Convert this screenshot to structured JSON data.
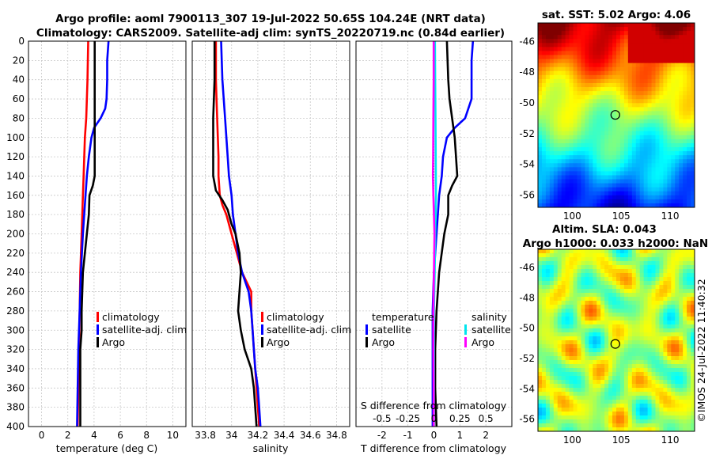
{
  "title_line1": "Argo profile: aoml 7900113_307 19-Jul-2022 50.65S 104.24E (NRT data)",
  "title_line2": "Climatology: CARS2009. Satellite-adj clim: synTS_20220719.nc (0.84d earlier)",
  "timestamp": "©IMOS 24-Jul-2022 11:40:32",
  "colors": {
    "climatology": "#ff0000",
    "satellite": "#0000ff",
    "argo": "#000000",
    "salinity_sat": "#00e5ee",
    "salinity_argo": "#ff00ff"
  },
  "depth_ticks": [
    "0",
    "20",
    "40",
    "60",
    "80",
    "100",
    "120",
    "140",
    "160",
    "180",
    "200",
    "220",
    "240",
    "260",
    "280",
    "300",
    "320",
    "340",
    "360",
    "380",
    "400"
  ],
  "chart_data": [
    {
      "type": "line",
      "panel": "temperature",
      "xlabel": "temperature (deg C)",
      "ylabel": "",
      "xlim": [
        -1,
        11
      ],
      "ylim": [
        400,
        0
      ],
      "xticks": [
        0,
        2,
        4,
        6,
        8,
        10
      ],
      "xtick_labels": [
        "0",
        "2",
        "4",
        "6",
        "8",
        "10"
      ],
      "legend": [
        "climatology",
        "satellite-adj. clim",
        "Argo"
      ],
      "series": [
        {
          "name": "climatology",
          "color": "#ff0000",
          "depth": [
            0,
            40,
            80,
            100,
            140,
            160,
            200,
            240,
            280,
            320,
            360,
            400
          ],
          "values": [
            3.55,
            3.5,
            3.4,
            3.3,
            3.2,
            3.15,
            3.05,
            2.95,
            2.9,
            2.85,
            2.8,
            2.75
          ]
        },
        {
          "name": "satellite-adj. clim",
          "color": "#0000ff",
          "depth": [
            0,
            20,
            40,
            60,
            70,
            80,
            90,
            100,
            120,
            140,
            160,
            200,
            240,
            280,
            320,
            360,
            400
          ],
          "values": [
            5.1,
            5.0,
            5.0,
            4.95,
            4.85,
            4.5,
            4.0,
            3.8,
            3.6,
            3.45,
            3.35,
            3.15,
            3.0,
            2.9,
            2.8,
            2.75,
            2.7
          ]
        },
        {
          "name": "Argo",
          "color": "#000000",
          "depth": [
            0,
            40,
            80,
            140,
            150,
            160,
            180,
            200,
            220,
            240,
            280,
            300,
            320,
            340,
            360,
            380,
            400
          ],
          "values": [
            4.05,
            4.05,
            4.05,
            4.05,
            3.9,
            3.65,
            3.6,
            3.45,
            3.3,
            3.15,
            3.05,
            3.05,
            2.95,
            2.95,
            2.95,
            2.95,
            2.95
          ]
        }
      ]
    },
    {
      "type": "line",
      "panel": "salinity",
      "xlabel": "salinity",
      "ylabel": "",
      "xlim": [
        33.7,
        34.9
      ],
      "ylim": [
        400,
        0
      ],
      "xticks": [
        33.8,
        34,
        34.2,
        34.4,
        34.6,
        34.8
      ],
      "xtick_labels": [
        "33.8",
        "34",
        "34.2",
        "34.4",
        "34.6",
        "34.8"
      ],
      "legend": [
        "climatology",
        "satellite-adj. clim",
        "Argo"
      ],
      "series": [
        {
          "name": "climatology",
          "color": "#ff0000",
          "depth": [
            0,
            40,
            80,
            120,
            140,
            160,
            170,
            180,
            200,
            220,
            240,
            260,
            280,
            300,
            340,
            360,
            400
          ],
          "values": [
            33.88,
            33.88,
            33.89,
            33.9,
            33.9,
            33.91,
            33.93,
            33.96,
            34.0,
            34.04,
            34.08,
            34.15,
            34.15,
            34.16,
            34.18,
            34.19,
            34.21
          ]
        },
        {
          "name": "satellite-adj. clim",
          "color": "#0000ff",
          "depth": [
            0,
            40,
            80,
            120,
            140,
            160,
            180,
            200,
            220,
            240,
            260,
            280,
            300,
            320,
            340,
            360,
            380,
            400
          ],
          "values": [
            33.92,
            33.93,
            33.95,
            33.97,
            33.98,
            34.0,
            34.01,
            34.03,
            34.05,
            34.08,
            34.13,
            34.15,
            34.16,
            34.17,
            34.18,
            34.2,
            34.21,
            34.22
          ]
        },
        {
          "name": "Argo",
          "color": "#000000",
          "depth": [
            0,
            40,
            80,
            120,
            140,
            155,
            165,
            175,
            190,
            200,
            220,
            240,
            260,
            280,
            300,
            320,
            340,
            360,
            380,
            400
          ],
          "values": [
            33.87,
            33.87,
            33.86,
            33.86,
            33.86,
            33.88,
            33.93,
            33.97,
            34.0,
            34.03,
            34.06,
            34.07,
            34.06,
            34.05,
            34.07,
            34.1,
            34.15,
            34.17,
            34.18,
            34.19
          ]
        }
      ]
    },
    {
      "type": "line",
      "panel": "differences",
      "xlabel": "T difference from climatology",
      "xlabel_top": "S difference from climatology",
      "xlim": [
        -3,
        3
      ],
      "ylim": [
        400,
        0
      ],
      "xticks": [
        -2,
        -1,
        0,
        1,
        2
      ],
      "xtick_labels": [
        "-2",
        "-1",
        "0",
        "1",
        "2"
      ],
      "s_ticks": [
        -0.5,
        -0.25,
        0,
        0.25,
        0.5
      ],
      "s_tick_labels": [
        "-0.5",
        "-0.25",
        "0",
        "0.25",
        "0.5"
      ],
      "legend_temperature": {
        "heading": "temperature",
        "items": [
          "satellite",
          "Argo"
        ]
      },
      "legend_salinity": {
        "heading": "salinity",
        "items": [
          "satellite",
          "Argo"
        ]
      },
      "series": [
        {
          "name": "temperature satellite",
          "color": "#0000ff",
          "depth": [
            0,
            20,
            40,
            60,
            80,
            90,
            100,
            120,
            140,
            160,
            200,
            240,
            280,
            320,
            360,
            400
          ],
          "values": [
            1.5,
            1.45,
            1.45,
            1.45,
            1.2,
            0.8,
            0.5,
            0.35,
            0.3,
            0.2,
            0.1,
            0.0,
            -0.05,
            -0.05,
            -0.05,
            -0.05
          ]
        },
        {
          "name": "temperature Argo",
          "color": "#000000",
          "depth": [
            0,
            40,
            60,
            80,
            100,
            140,
            150,
            160,
            180,
            200,
            240,
            280,
            320,
            360,
            400
          ],
          "values": [
            0.5,
            0.55,
            0.6,
            0.7,
            0.8,
            0.9,
            0.7,
            0.55,
            0.55,
            0.4,
            0.2,
            0.1,
            0.05,
            0.05,
            0.1
          ]
        },
        {
          "name": "salinity satellite",
          "color": "#00e5ee",
          "depth": [
            0,
            40,
            80,
            120,
            160,
            200,
            240,
            280,
            320,
            360,
            400
          ],
          "values": [
            0.04,
            0.05,
            0.06,
            0.07,
            0.08,
            0.05,
            0.03,
            0.0,
            0.0,
            0.0,
            0.0
          ]
        },
        {
          "name": "salinity Argo",
          "color": "#ff00ff",
          "depth": [
            0,
            40,
            80,
            120,
            140,
            160,
            180,
            200,
            240,
            280,
            320,
            360,
            400
          ],
          "values": [
            -0.01,
            -0.01,
            -0.02,
            -0.03,
            -0.04,
            -0.02,
            0.0,
            0.02,
            0.0,
            -0.02,
            -0.02,
            -0.01,
            -0.01
          ]
        }
      ]
    },
    {
      "type": "heatmap",
      "panel": "sst_map",
      "title": "sat. SST: 5.02 Argo: 4.06",
      "xlim": [
        96.5,
        112.5
      ],
      "ylim": [
        -56.8,
        -44.8
      ],
      "xticks": [
        100,
        105,
        110
      ],
      "xtick_labels": [
        "100",
        "105",
        "110"
      ],
      "yticks": [
        -46,
        -48,
        -50,
        -52,
        -54,
        -56
      ],
      "ytick_labels": [
        "-46",
        "-48",
        "-50",
        "-52",
        "-54",
        "-56"
      ],
      "marker": {
        "lon": 104.24,
        "lat": -50.65
      }
    },
    {
      "type": "heatmap",
      "panel": "sla_map",
      "title_line1": "Altim. SLA: 0.043",
      "title_line2": "Argo h1000: 0.033 h2000: NaN",
      "xlim": [
        96.5,
        112.5
      ],
      "ylim": [
        -56.8,
        -44.8
      ],
      "xticks": [
        100,
        105,
        110
      ],
      "xtick_labels": [
        "100",
        "105",
        "110"
      ],
      "yticks": [
        -46,
        -48,
        -50,
        -52,
        -54,
        -56
      ],
      "ytick_labels": [
        "-46",
        "-48",
        "-50",
        "-52",
        "-54",
        "-56"
      ],
      "marker": {
        "lon": 104.24,
        "lat": -50.65
      }
    }
  ]
}
